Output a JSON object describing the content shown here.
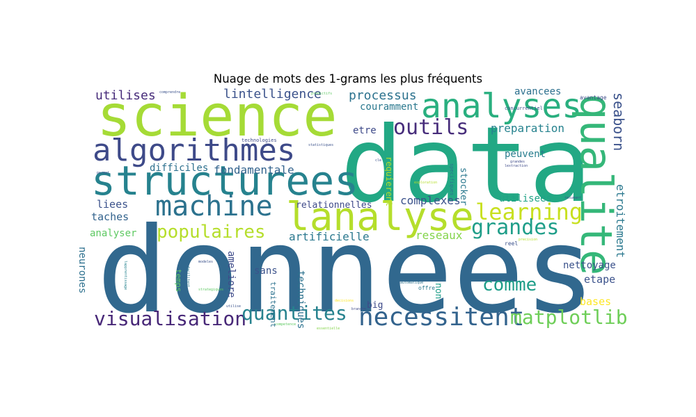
{
  "title": "Nuage de mots des 1-grams les plus fréquents",
  "words": [
    {
      "text": "donnees",
      "color": "#31688e"
    },
    {
      "text": "data",
      "color": "#22a884"
    },
    {
      "text": "science",
      "color": "#a5db36"
    },
    {
      "text": "structurees",
      "color": "#26828e"
    },
    {
      "text": "algorithmes",
      "color": "#3e4a89"
    },
    {
      "text": "lanalyse",
      "color": "#b5de2b"
    },
    {
      "text": "analyses",
      "color": "#29af7f"
    },
    {
      "text": "qualite",
      "color": "#35b779"
    },
    {
      "text": "machine",
      "color": "#2c728e"
    },
    {
      "text": "necessitent",
      "color": "#33638d"
    },
    {
      "text": "visualisation",
      "color": "#482878"
    },
    {
      "text": "quantites",
      "color": "#26828e"
    },
    {
      "text": "matplotlib",
      "color": "#6ece58"
    },
    {
      "text": "outils",
      "color": "#472d7b"
    },
    {
      "text": "learning",
      "color": "#c8e020"
    },
    {
      "text": "grandes",
      "color": "#1f9e89"
    },
    {
      "text": "populaires",
      "color": "#b5de2b"
    },
    {
      "text": "comme",
      "color": "#1f9e89"
    },
    {
      "text": "seaborn",
      "color": "#3b528b"
    },
    {
      "text": "etroitement",
      "color": "#2a788e"
    },
    {
      "text": "lintelligence",
      "color": "#3b528b"
    },
    {
      "text": "processus",
      "color": "#2c728e"
    },
    {
      "text": "preparation",
      "color": "#26828e"
    },
    {
      "text": "utilises",
      "color": "#472c7a"
    },
    {
      "text": "fondamentale",
      "color": "#33638d"
    },
    {
      "text": "complexes",
      "color": "#3b528b"
    },
    {
      "text": "difficiles",
      "color": "#2d708e"
    },
    {
      "text": "liees",
      "color": "#3b528b"
    },
    {
      "text": "taches",
      "color": "#33638d"
    },
    {
      "text": "analyser",
      "color": "#5ec962"
    },
    {
      "text": "relationnelles",
      "color": "#3e4a89"
    },
    {
      "text": "artificielle",
      "color": "#2a788e"
    },
    {
      "text": "reseaux",
      "color": "#84d44b"
    },
    {
      "text": "peuvent",
      "color": "#287d8e"
    },
    {
      "text": "utilisees",
      "color": "#20a386"
    },
    {
      "text": "avancees",
      "color": "#2d708e"
    },
    {
      "text": "couramment",
      "color": "#2a788e"
    },
    {
      "text": "etre",
      "color": "#3e4a89"
    },
    {
      "text": "nettoyage",
      "color": "#3b528b"
    },
    {
      "text": "etape",
      "color": "#3b528b"
    },
    {
      "text": "bases",
      "color": "#fde725"
    },
    {
      "text": "neurones",
      "color": "#2d708e"
    },
    {
      "text": "ameliore",
      "color": "#3e4a89"
    },
    {
      "text": "sans",
      "color": "#3b528b"
    },
    {
      "text": "techniques",
      "color": "#2c728e"
    },
    {
      "text": "non",
      "color": "#1f9e89"
    },
    {
      "text": "big",
      "color": "#3e4a89"
    },
    {
      "text": "stocker",
      "color": "#2a788e"
    },
    {
      "text": "requierent",
      "color": "#b5de2b"
    },
    {
      "text": "traitement",
      "color": "#2c728e"
    },
    {
      "text": "temps",
      "color": "#5ec962"
    },
    {
      "text": "avantage",
      "color": "#3e4a89"
    },
    {
      "text": "concurrentiel",
      "color": "#3b528b"
    },
    {
      "text": "specifiques",
      "color": "#2c728e"
    },
    {
      "text": "reel",
      "color": "#3b528b"
    },
    {
      "text": "offre",
      "color": "#2a788e"
    },
    {
      "text": "technologies",
      "color": "#3e4a89"
    },
    {
      "text": "comprendre",
      "color": "#3b528b"
    },
    {
      "text": "lextraction",
      "color": "#3e4a89"
    },
    {
      "text": "cle",
      "color": "#3b528b"
    },
    {
      "text": "modeles",
      "color": "#3b528b"
    },
    {
      "text": "lapprentissage",
      "color": "#26828e"
    },
    {
      "text": "utilise",
      "color": "#3b528b"
    },
    {
      "text": "competence",
      "color": "#5ec962"
    },
    {
      "text": "branche",
      "color": "#3e4a89"
    },
    {
      "text": "automatique",
      "color": "#2c728e"
    },
    {
      "text": "permet",
      "color": "#3b528b"
    },
    {
      "text": "grandes",
      "color": "#3e4a89"
    },
    {
      "text": "resumant",
      "color": "#3b528b"
    },
    {
      "text": "statistiques",
      "color": "#3b528b"
    },
    {
      "text": "facilitent",
      "color": "#2a788e"
    },
    {
      "text": "predictifs",
      "color": "#5ec962"
    },
    {
      "text": "exploration",
      "color": "#b5de2b"
    },
    {
      "text": "strategiques",
      "color": "#5ec962"
    },
    {
      "text": "decisions",
      "color": "#fde725"
    },
    {
      "text": "essentielle",
      "color": "#84d44b"
    },
    {
      "text": "precision",
      "color": "#b5de2b"
    }
  ]
}
